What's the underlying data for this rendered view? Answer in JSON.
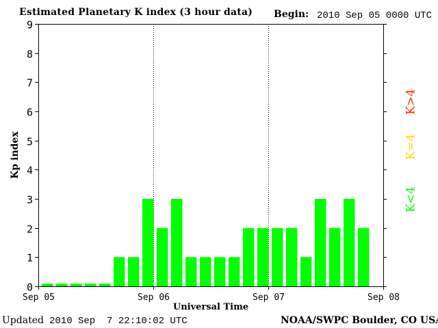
{
  "header": {
    "title": "Estimated Planetary K index (3 hour data)",
    "begin_label": "Begin:",
    "begin_value": "2010 Sep 05 0000 UTC"
  },
  "footer": {
    "updated_label": "Updated",
    "updated_value": "2010 Sep  7 22:10:02 UTC",
    "source": "NOAA/SWPC Boulder, CO USA"
  },
  "legend": [
    {
      "label": "K>4",
      "color": "#ff2a00"
    },
    {
      "label": "K=4",
      "color": "#ffd700"
    },
    {
      "label": "K<4",
      "color": "#00ff00"
    }
  ],
  "chart_data": {
    "type": "bar",
    "title": "Estimated Planetary K index (3 hour data)",
    "xlabel": "Universal Time",
    "ylabel": "Kp index",
    "ylim": [
      0,
      9
    ],
    "y_ticks": [
      0,
      1,
      2,
      3,
      4,
      5,
      6,
      7,
      8,
      9
    ],
    "x_ticks": [
      "Sep 05",
      "Sep 06",
      "Sep 07",
      "Sep 08"
    ],
    "day_separators": [
      "Sep 06",
      "Sep 07"
    ],
    "bar_color": "#00ff00",
    "interval_hours": 3,
    "start": "2010 Sep 05 0000 UTC",
    "values": [
      0,
      0,
      0,
      0,
      0,
      1,
      1,
      3,
      2,
      3,
      1,
      1,
      1,
      1,
      2,
      2,
      2,
      2,
      1,
      3,
      2,
      3,
      2
    ]
  }
}
